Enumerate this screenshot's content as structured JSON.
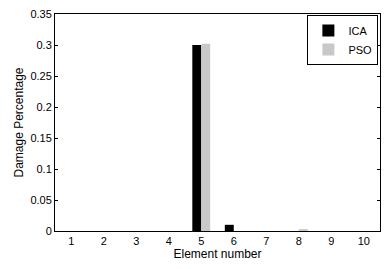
{
  "chart_data": {
    "type": "bar",
    "x_label": "Element number",
    "y_label": "Damage Percentage",
    "categories": [
      "1",
      "2",
      "3",
      "4",
      "5",
      "6",
      "7",
      "8",
      "9",
      "10"
    ],
    "series": [
      {
        "name": "ICA",
        "color": "#000000",
        "values": [
          0,
          0,
          0,
          0,
          0.3,
          0.01,
          0,
          0,
          0,
          0
        ]
      },
      {
        "name": "PSO",
        "color": "#c8c8c8",
        "values": [
          0,
          0,
          0,
          0,
          0.302,
          0,
          0,
          0.003,
          0,
          0
        ]
      }
    ],
    "ylim": [
      0,
      0.35
    ],
    "yticks": [
      0,
      0.05,
      0.1,
      0.15,
      0.2,
      0.25,
      0.3,
      0.35
    ],
    "grid": false,
    "legend": "upper right"
  }
}
